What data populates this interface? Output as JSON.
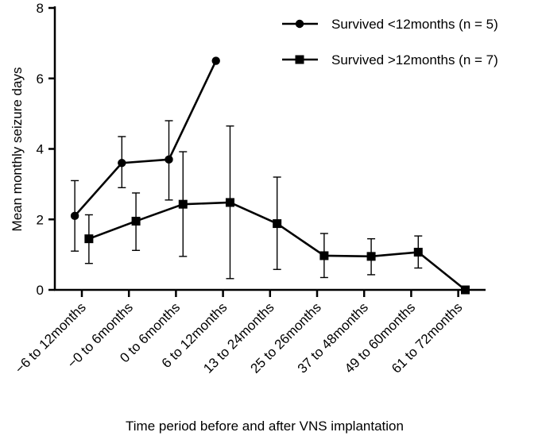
{
  "chart_data": {
    "type": "line",
    "title": "",
    "xlabel": "Time period before and after VNS implantation",
    "ylabel": "Mean monthly seizure days",
    "ylim": [
      0,
      8
    ],
    "yticks": [
      "0",
      "2",
      "4",
      "6",
      "8"
    ],
    "grid": false,
    "legend_position": "top-right",
    "categories": [
      "−6 to 12months",
      "−0 to 6months",
      "0 to 6months",
      "6 to 12months",
      "13 to 24months",
      "25 to 26months",
      "37 to 48months",
      "49 to 60months",
      "61 to 72months"
    ],
    "series": [
      {
        "name": "Survived <12months (n = 5)",
        "marker": "circle",
        "color": "#000000",
        "x_offset": -0.15,
        "values": [
          2.1,
          3.6,
          3.7,
          6.5,
          null,
          null,
          null,
          null,
          null
        ],
        "error_low": [
          1.1,
          2.9,
          2.55,
          null,
          null,
          null,
          null,
          null,
          null
        ],
        "error_high": [
          3.1,
          4.35,
          4.8,
          null,
          null,
          null,
          null,
          null,
          null
        ]
      },
      {
        "name": "Survived >12months (n = 7)",
        "marker": "square",
        "color": "#000000",
        "x_offset": 0.15,
        "values": [
          1.45,
          1.95,
          2.43,
          2.48,
          1.88,
          0.97,
          0.95,
          1.07,
          0.0
        ],
        "error_low": [
          0.75,
          1.12,
          0.95,
          0.32,
          0.58,
          0.35,
          0.43,
          0.62,
          null
        ],
        "error_high": [
          2.13,
          2.75,
          3.92,
          4.65,
          3.2,
          1.6,
          1.45,
          1.53,
          null
        ]
      }
    ]
  }
}
